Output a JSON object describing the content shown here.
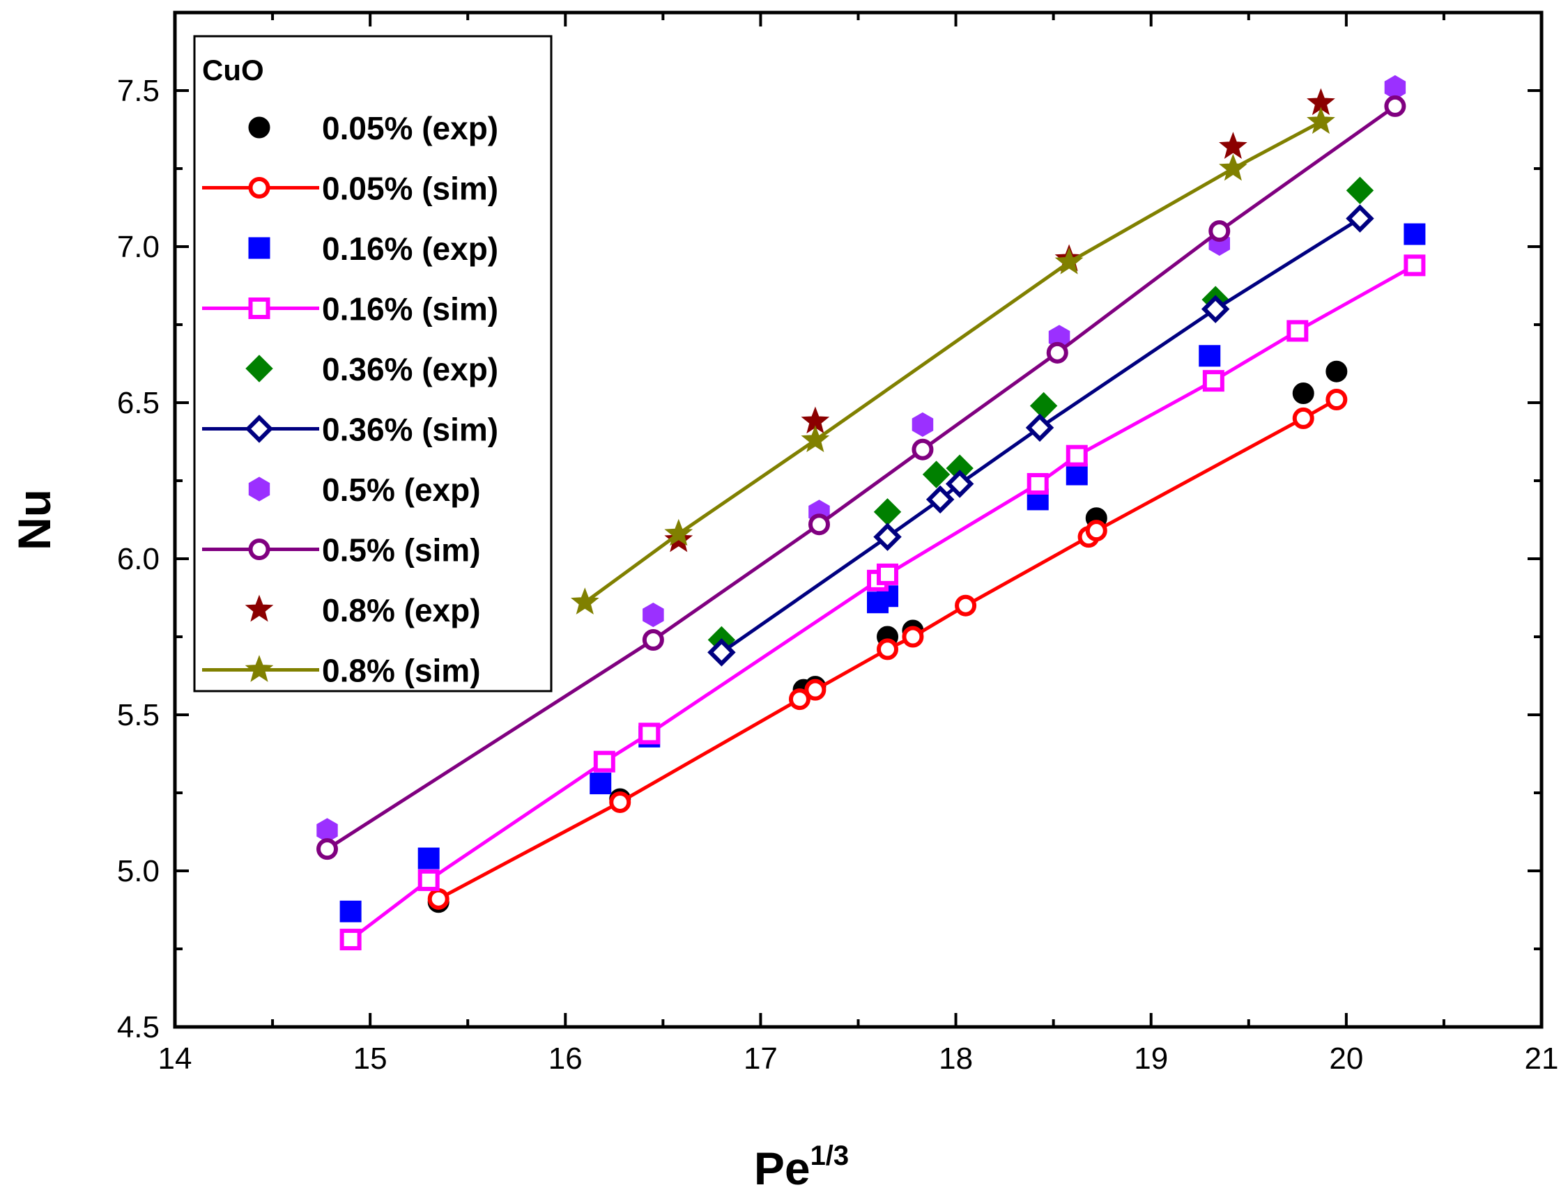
{
  "chart_data": {
    "type": "scatter",
    "xlabel": "Pe",
    "xlabel_sup": "1/3",
    "ylabel": "Nu",
    "xlim": [
      14,
      21
    ],
    "ylim": [
      4.5,
      7.75
    ],
    "x_ticks": [
      "14",
      "15",
      "16",
      "17",
      "18",
      "19",
      "20",
      "21"
    ],
    "y_ticks": [
      "4.5",
      "5.0",
      "5.5",
      "6.0",
      "6.5",
      "7.0",
      "7.5"
    ],
    "legend_title": "CuO",
    "legend_position": "top-left",
    "grid": false,
    "series": [
      {
        "name": "0.05% (exp)",
        "kind": "exp",
        "marker": "circle-filled",
        "color": "#000000",
        "x": [
          15.35,
          16.28,
          17.22,
          17.28,
          17.65,
          17.78,
          18.72,
          19.78,
          19.95
        ],
        "y": [
          4.9,
          5.23,
          5.58,
          5.59,
          5.75,
          5.77,
          6.13,
          6.53,
          6.6
        ]
      },
      {
        "name": "0.05% (sim)",
        "kind": "sim",
        "marker": "circle-open",
        "color": "#ff0000",
        "x": [
          15.35,
          16.28,
          17.2,
          17.28,
          17.65,
          17.78,
          18.05,
          18.68,
          18.72,
          19.78,
          19.95
        ],
        "y": [
          4.91,
          5.22,
          5.55,
          5.58,
          5.71,
          5.75,
          5.85,
          6.07,
          6.09,
          6.45,
          6.51
        ]
      },
      {
        "name": "0.16% (exp)",
        "kind": "exp",
        "marker": "square-filled",
        "color": "#0000ff",
        "x": [
          14.9,
          15.3,
          16.18,
          16.43,
          17.6,
          17.65,
          18.42,
          18.62,
          19.3,
          20.35
        ],
        "y": [
          4.87,
          5.04,
          5.28,
          5.43,
          5.86,
          5.88,
          6.19,
          6.27,
          6.65,
          7.04
        ]
      },
      {
        "name": "0.16% (sim)",
        "kind": "sim",
        "marker": "square-open",
        "color": "#ff00ff",
        "x": [
          14.9,
          15.3,
          16.2,
          16.43,
          17.6,
          17.65,
          18.42,
          18.62,
          19.32,
          19.75,
          20.35
        ],
        "y": [
          4.78,
          4.97,
          5.35,
          5.44,
          5.93,
          5.95,
          6.24,
          6.33,
          6.57,
          6.73,
          6.94
        ]
      },
      {
        "name": "0.36% (exp)",
        "kind": "exp",
        "marker": "diamond-filled",
        "color": "#008000",
        "x": [
          16.8,
          17.65,
          17.9,
          18.02,
          18.45,
          19.33,
          20.07
        ],
        "y": [
          5.74,
          6.15,
          6.27,
          6.29,
          6.49,
          6.83,
          7.18
        ]
      },
      {
        "name": "0.36% (sim)",
        "kind": "sim",
        "marker": "diamond-open",
        "color": "#000080",
        "x": [
          16.8,
          17.65,
          17.92,
          18.02,
          18.43,
          19.33,
          20.07
        ],
        "y": [
          5.7,
          6.07,
          6.19,
          6.24,
          6.42,
          6.8,
          7.09
        ]
      },
      {
        "name": "0.5% (exp)",
        "kind": "exp",
        "marker": "hexagon-filled",
        "color": "#9b30ff",
        "x": [
          14.78,
          16.45,
          17.3,
          17.83,
          18.53,
          19.35,
          20.25
        ],
        "y": [
          5.13,
          5.82,
          6.15,
          6.43,
          6.71,
          7.01,
          7.51
        ]
      },
      {
        "name": "0.5% (sim)",
        "kind": "sim",
        "marker": "circle-open",
        "color": "#800080",
        "x": [
          14.78,
          16.45,
          17.3,
          17.83,
          18.52,
          19.35,
          20.25
        ],
        "y": [
          5.07,
          5.74,
          6.11,
          6.35,
          6.66,
          7.05,
          7.45
        ]
      },
      {
        "name": "0.8% (exp)",
        "kind": "exp",
        "marker": "star-filled",
        "color": "#8b0000",
        "x": [
          16.58,
          17.28,
          18.58,
          19.42,
          19.87
        ],
        "y": [
          6.06,
          6.44,
          6.96,
          7.32,
          7.46
        ]
      },
      {
        "name": "0.8% (sim)",
        "kind": "sim",
        "marker": "star-filled",
        "color": "#808000",
        "x": [
          16.1,
          16.58,
          17.28,
          18.58,
          19.42,
          19.87
        ],
        "y": [
          5.86,
          6.08,
          6.38,
          6.95,
          7.25,
          7.4
        ]
      }
    ]
  }
}
